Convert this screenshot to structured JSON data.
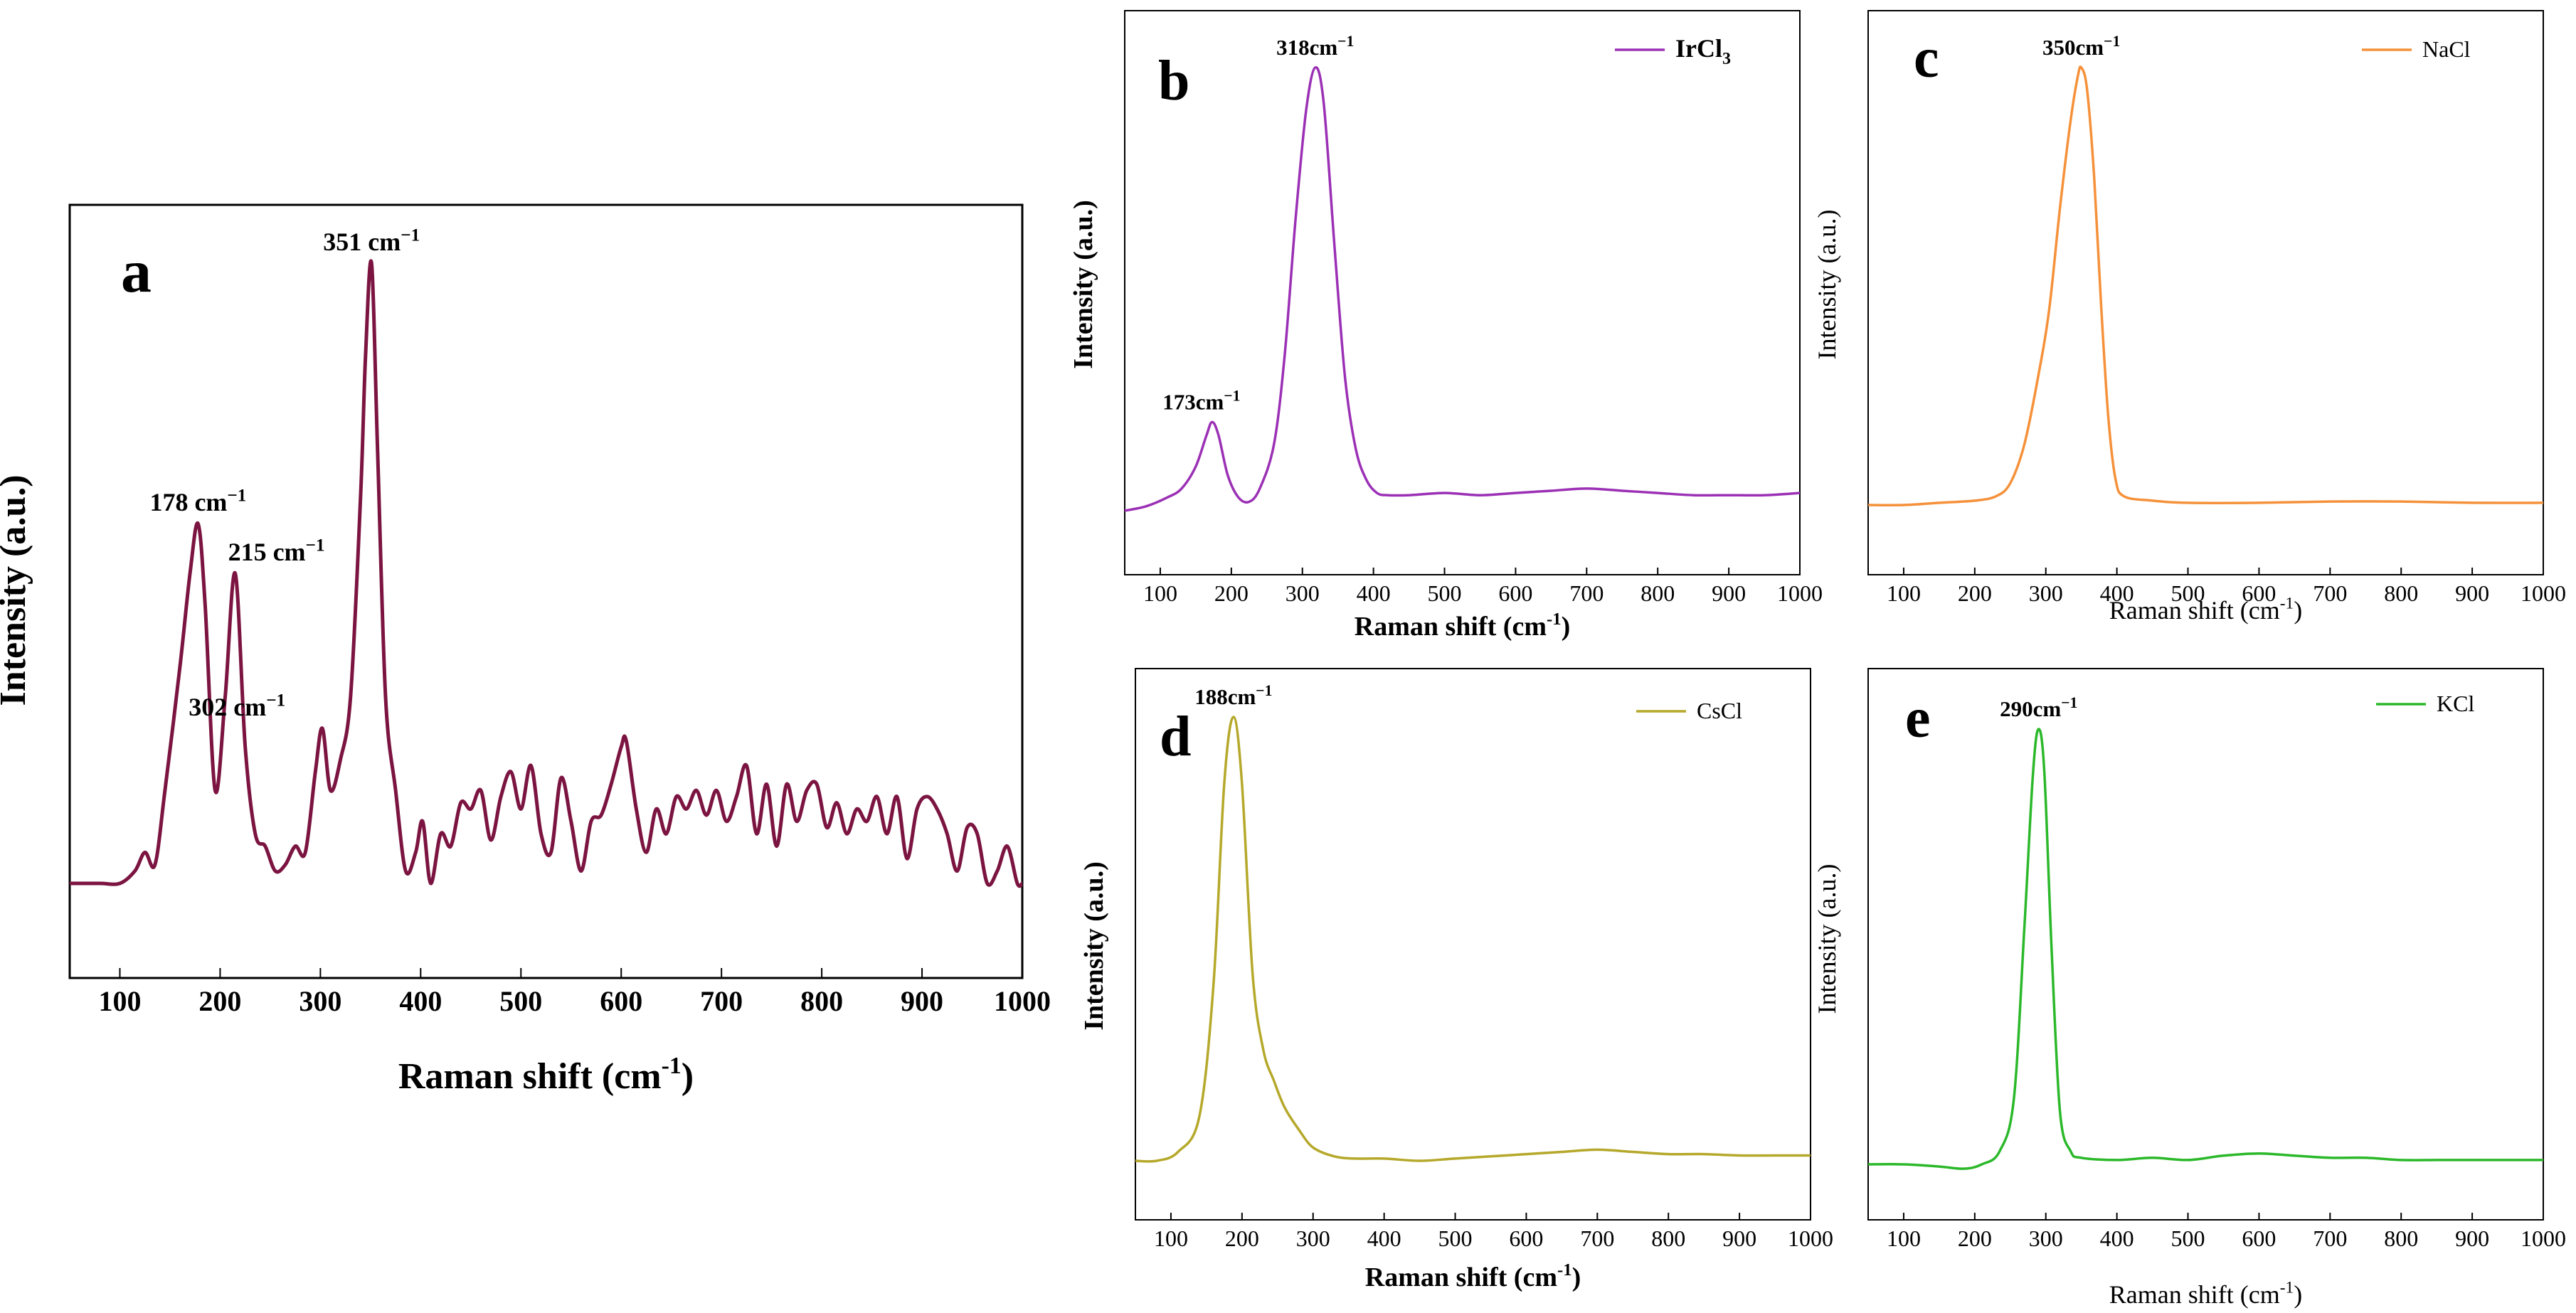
{
  "chart_data": [
    {
      "id": "a",
      "type": "line",
      "panel_label": "a",
      "xlabel": "Raman shift (cm",
      "xlabel_sup": "-1",
      "xlabel_suffix": ")",
      "ylabel": "Intensity (a.u.)",
      "xlim": [
        50,
        1000
      ],
      "ylim": [
        0,
        1.12
      ],
      "xticks": [
        100,
        200,
        300,
        400,
        500,
        600,
        700,
        800,
        900,
        1000
      ],
      "color": "#7b1440",
      "series": [
        {
          "name": "a",
          "x": [
            50,
            80,
            100,
            115,
            125,
            135,
            145,
            160,
            170,
            178,
            185,
            195,
            205,
            215,
            225,
            235,
            245,
            255,
            265,
            275,
            285,
            295,
            302,
            310,
            320,
            330,
            340,
            345,
            351,
            357,
            365,
            375,
            385,
            395,
            402,
            410,
            420,
            430,
            440,
            450,
            460,
            470,
            480,
            490,
            500,
            510,
            520,
            530,
            540,
            550,
            560,
            570,
            580,
            590,
            600,
            605,
            615,
            625,
            635,
            645,
            655,
            665,
            675,
            685,
            695,
            705,
            715,
            725,
            735,
            745,
            755,
            765,
            775,
            785,
            795,
            805,
            815,
            825,
            835,
            845,
            855,
            865,
            875,
            885,
            895,
            905,
            915,
            925,
            935,
            945,
            955,
            965,
            975,
            985,
            995,
            1000
          ],
          "y": [
            0.0,
            0.0,
            0.0,
            0.02,
            0.05,
            0.03,
            0.15,
            0.35,
            0.5,
            0.58,
            0.45,
            0.15,
            0.3,
            0.5,
            0.22,
            0.08,
            0.06,
            0.02,
            0.03,
            0.06,
            0.05,
            0.18,
            0.25,
            0.15,
            0.2,
            0.3,
            0.62,
            0.85,
            1.0,
            0.7,
            0.3,
            0.15,
            0.02,
            0.05,
            0.1,
            0.0,
            0.08,
            0.06,
            0.13,
            0.12,
            0.15,
            0.07,
            0.14,
            0.18,
            0.12,
            0.19,
            0.08,
            0.05,
            0.17,
            0.1,
            0.02,
            0.1,
            0.11,
            0.16,
            0.22,
            0.23,
            0.12,
            0.05,
            0.12,
            0.08,
            0.14,
            0.12,
            0.15,
            0.11,
            0.15,
            0.1,
            0.14,
            0.19,
            0.08,
            0.16,
            0.06,
            0.16,
            0.1,
            0.15,
            0.16,
            0.09,
            0.13,
            0.08,
            0.12,
            0.1,
            0.14,
            0.08,
            0.14,
            0.04,
            0.12,
            0.14,
            0.12,
            0.08,
            0.02,
            0.09,
            0.08,
            0.0,
            0.02,
            0.06,
            0.0,
            0.0
          ]
        }
      ],
      "annotations": [
        {
          "x": 351,
          "y": 1.0,
          "label": "351 cm",
          "sup": "−1"
        },
        {
          "x": 178,
          "y": 0.58,
          "label": "178 cm",
          "sup": "−1"
        },
        {
          "x": 215,
          "y": 0.5,
          "label": "215 cm",
          "sup": "−1"
        },
        {
          "x": 302,
          "y": 0.25,
          "label": "302 cm",
          "sup": "−1"
        }
      ]
    },
    {
      "id": "b",
      "type": "line",
      "panel_label": "b",
      "xlabel": "Raman shift (cm",
      "xlabel_sup": "-1",
      "xlabel_suffix": ")",
      "ylabel": "Intensity (a.u.)",
      "xlim": [
        50,
        1000
      ],
      "ylim": [
        0,
        1.1
      ],
      "xticks": [
        100,
        200,
        300,
        400,
        500,
        600,
        700,
        800,
        900,
        1000
      ],
      "color": "#9b30b5",
      "legend": {
        "label": "IrCl",
        "sub": "3",
        "position": "top-right"
      },
      "series": [
        {
          "name": "IrCl3",
          "x": [
            50,
            80,
            110,
            130,
            150,
            165,
            173,
            182,
            195,
            210,
            225,
            240,
            260,
            275,
            290,
            305,
            318,
            330,
            345,
            360,
            375,
            390,
            405,
            420,
            450,
            500,
            550,
            600,
            650,
            700,
            750,
            800,
            850,
            900,
            950,
            1000
          ],
          "y": [
            0.0,
            0.01,
            0.03,
            0.05,
            0.1,
            0.17,
            0.2,
            0.17,
            0.08,
            0.03,
            0.02,
            0.05,
            0.15,
            0.35,
            0.65,
            0.9,
            1.0,
            0.92,
            0.6,
            0.3,
            0.14,
            0.07,
            0.04,
            0.035,
            0.035,
            0.04,
            0.035,
            0.04,
            0.045,
            0.05,
            0.045,
            0.04,
            0.035,
            0.035,
            0.035,
            0.04
          ]
        }
      ],
      "annotations": [
        {
          "x": 318,
          "y": 1.0,
          "label": "318cm",
          "sup": "−1"
        },
        {
          "x": 173,
          "y": 0.2,
          "label": "173cm",
          "sup": "−1"
        }
      ]
    },
    {
      "id": "c",
      "type": "line",
      "panel_label": "c",
      "xlabel": "Raman shift (cm",
      "xlabel_sup": "-1",
      "xlabel_suffix": ")",
      "ylabel": "Intensity (a.u.)",
      "xlim": [
        50,
        1000
      ],
      "ylim": [
        0,
        1.1
      ],
      "xticks": [
        100,
        200,
        300,
        400,
        500,
        600,
        700,
        800,
        900,
        1000
      ],
      "color": "#f5913a",
      "legend": {
        "label": "NaCl",
        "position": "top-right"
      },
      "series": [
        {
          "name": "NaCl",
          "x": [
            50,
            100,
            150,
            200,
            230,
            250,
            270,
            290,
            305,
            320,
            335,
            345,
            350,
            358,
            368,
            378,
            388,
            398,
            410,
            450,
            500,
            600,
            700,
            800,
            900,
            1000
          ],
          "y": [
            0.0,
            0.0,
            0.005,
            0.01,
            0.02,
            0.05,
            0.14,
            0.3,
            0.45,
            0.68,
            0.88,
            0.98,
            1.0,
            0.95,
            0.75,
            0.45,
            0.2,
            0.06,
            0.02,
            0.01,
            0.005,
            0.005,
            0.008,
            0.008,
            0.005,
            0.005
          ]
        }
      ],
      "annotations": [
        {
          "x": 350,
          "y": 1.0,
          "label": "350cm",
          "sup": "−1"
        }
      ]
    },
    {
      "id": "d",
      "type": "line",
      "panel_label": "d",
      "xlabel": "Raman shift (cm",
      "xlabel_sup": "-1",
      "xlabel_suffix": ")",
      "ylabel": "Intensity (a.u.)",
      "xlim": [
        50,
        1000
      ],
      "ylim": [
        0,
        1.1
      ],
      "xticks": [
        100,
        200,
        300,
        400,
        500,
        600,
        700,
        800,
        900,
        1000
      ],
      "color": "#b5a82a",
      "legend": {
        "label": "CsCl",
        "position": "top-right"
      },
      "series": [
        {
          "name": "CsCl",
          "x": [
            50,
            80,
            110,
            140,
            160,
            175,
            188,
            200,
            215,
            230,
            245,
            260,
            280,
            300,
            330,
            360,
            400,
            450,
            500,
            550,
            600,
            650,
            700,
            750,
            800,
            850,
            900,
            950,
            1000
          ],
          "y": [
            0.0,
            0.0,
            0.02,
            0.1,
            0.4,
            0.85,
            1.0,
            0.85,
            0.42,
            0.25,
            0.18,
            0.12,
            0.07,
            0.03,
            0.01,
            0.005,
            0.005,
            0.0,
            0.005,
            0.01,
            0.015,
            0.02,
            0.025,
            0.02,
            0.015,
            0.015,
            0.012,
            0.012,
            0.012
          ]
        }
      ],
      "annotations": [
        {
          "x": 188,
          "y": 1.0,
          "label": "188cm",
          "sup": "−1"
        }
      ]
    },
    {
      "id": "e",
      "type": "line",
      "panel_label": "e",
      "xlabel": "Raman shift (cm",
      "xlabel_sup": "-1",
      "xlabel_suffix": ")",
      "ylabel": "Intensity (a.u.)",
      "xlim": [
        50,
        1000
      ],
      "ylim": [
        0,
        1.1
      ],
      "xticks": [
        100,
        200,
        300,
        400,
        500,
        600,
        700,
        800,
        900,
        1000
      ],
      "color": "#2bb82a",
      "legend": {
        "label": "KCl",
        "position": "top-right"
      },
      "series": [
        {
          "name": "KCl",
          "x": [
            50,
            100,
            150,
            185,
            210,
            235,
            255,
            270,
            282,
            290,
            298,
            308,
            320,
            335,
            350,
            400,
            450,
            500,
            550,
            600,
            650,
            700,
            750,
            800,
            850,
            900,
            950,
            1000
          ],
          "y": [
            0.0,
            0.0,
            -0.005,
            -0.01,
            0.0,
            0.03,
            0.15,
            0.55,
            0.9,
            1.0,
            0.9,
            0.5,
            0.12,
            0.03,
            0.015,
            0.01,
            0.015,
            0.01,
            0.02,
            0.025,
            0.02,
            0.015,
            0.015,
            0.01,
            0.01,
            0.01,
            0.01,
            0.01
          ]
        }
      ],
      "annotations": [
        {
          "x": 290,
          "y": 1.0,
          "label": "290cm",
          "sup": "−1"
        }
      ]
    }
  ]
}
